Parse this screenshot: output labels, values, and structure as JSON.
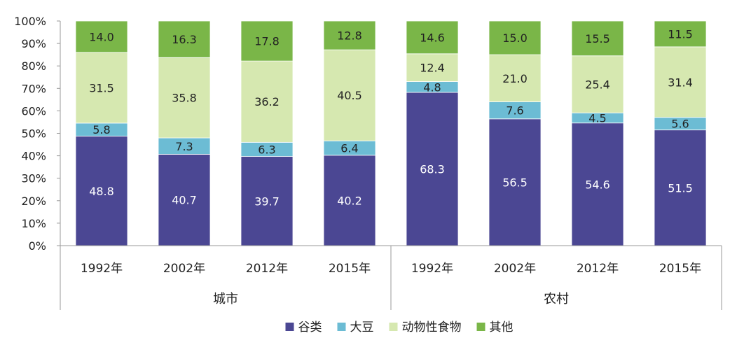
{
  "chart_data": {
    "type": "bar",
    "stacked": true,
    "percent": true,
    "groups": [
      {
        "name": "城市",
        "categories": [
          "1992年",
          "2002年",
          "2012年",
          "2015年"
        ]
      },
      {
        "name": "农村",
        "categories": [
          "1992年",
          "2002年",
          "2012年",
          "2015年"
        ]
      }
    ],
    "categories": [
      "1992年",
      "2002年",
      "2012年",
      "2015年",
      "1992年",
      "2002年",
      "2012年",
      "2015年"
    ],
    "series": [
      {
        "name": "谷类",
        "color": "#4b4793",
        "label_color": "#ffffff",
        "values": [
          48.8,
          40.7,
          39.7,
          40.2,
          68.3,
          56.5,
          54.6,
          51.5
        ]
      },
      {
        "name": "大豆",
        "color": "#6cbcd4",
        "label_color": "#222222",
        "values": [
          5.8,
          7.3,
          6.3,
          6.4,
          4.8,
          7.6,
          4.5,
          5.6
        ]
      },
      {
        "name": "动物性食物",
        "color": "#d6e8b0",
        "label_color": "#222222",
        "values": [
          31.5,
          35.8,
          36.2,
          40.5,
          12.4,
          21.0,
          25.4,
          31.4
        ]
      },
      {
        "name": "其他",
        "color": "#7ab648",
        "label_color": "#222222",
        "values": [
          14.0,
          16.3,
          17.8,
          12.8,
          14.6,
          15.0,
          15.5,
          11.5
        ]
      }
    ],
    "data_labels": [
      [
        "48.8",
        "40.7",
        "39.7",
        "40.2",
        "68.3",
        "56.5",
        "54.6",
        "51.5"
      ],
      [
        "5.8",
        "7.3",
        "6.3",
        "6.4",
        "4.8",
        "7.6",
        "4.5",
        "5.6"
      ],
      [
        "31.5",
        "35.8",
        "36.2",
        "40.5",
        "12.4",
        "21.0",
        "25.4",
        "31.4"
      ],
      [
        "14.0",
        "16.3",
        "17.8",
        "12.8",
        "14.6",
        "15.0",
        "15.5",
        "11.5"
      ]
    ],
    "yticks": [
      "0%",
      "10%",
      "20%",
      "30%",
      "40%",
      "50%",
      "60%",
      "70%",
      "80%",
      "90%",
      "100%"
    ],
    "ylim": [
      0,
      100
    ],
    "grid": false,
    "legend_position": "bottom-center",
    "title": "",
    "xlabel": "",
    "ylabel": ""
  }
}
